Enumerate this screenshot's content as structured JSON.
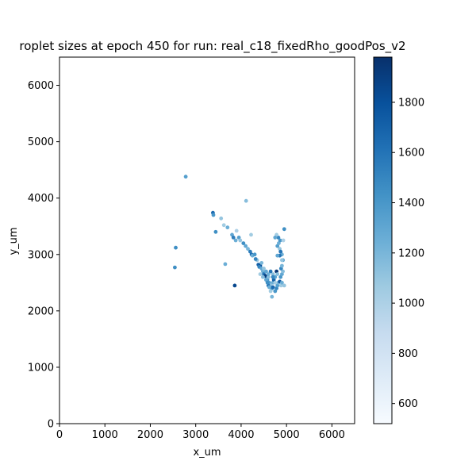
{
  "chart_data": {
    "type": "scatter",
    "title": "roplet sizes at epoch 450 for run: real_c18_fixedRho_goodPos_v2",
    "xlabel": "x_um",
    "ylabel": "y_um",
    "xlim": [
      0,
      6500
    ],
    "ylim": [
      0,
      6500
    ],
    "xticks": [
      0,
      1000,
      2000,
      3000,
      4000,
      5000,
      6000
    ],
    "yticks": [
      0,
      1000,
      2000,
      3000,
      4000,
      5000,
      6000
    ],
    "grid": false,
    "colorbar": {
      "cmap": "Blues",
      "range": [
        520,
        1980
      ],
      "ticks": [
        600,
        800,
        1000,
        1200,
        1400,
        1600,
        1800
      ],
      "colors": {
        "low": "#f7fbff",
        "mid": "#6baed6",
        "high": "#08306b"
      }
    },
    "points": [
      [
        2780,
        4380,
        1350
      ],
      [
        4110,
        3950,
        1150
      ],
      [
        3380,
        3740,
        1650
      ],
      [
        3390,
        3700,
        1400
      ],
      [
        3560,
        3640,
        1100
      ],
      [
        3700,
        3480,
        1250
      ],
      [
        3440,
        3400,
        1450
      ],
      [
        3620,
        3520,
        1050
      ],
      [
        3900,
        3420,
        1000
      ],
      [
        3800,
        3350,
        1300
      ],
      [
        3830,
        3300,
        1550
      ],
      [
        3880,
        3250,
        1250
      ],
      [
        3950,
        3300,
        1350
      ],
      [
        3980,
        3250,
        1100
      ],
      [
        4050,
        3200,
        1450
      ],
      [
        4100,
        3150,
        1300
      ],
      [
        4150,
        3100,
        1200
      ],
      [
        4200,
        3050,
        1550
      ],
      [
        4230,
        3000,
        1650
      ],
      [
        4250,
        2980,
        1250
      ],
      [
        4300,
        3000,
        1400
      ],
      [
        4220,
        3350,
        1050
      ],
      [
        4350,
        2900,
        1100
      ],
      [
        4380,
        2820,
        1700
      ],
      [
        4420,
        2800,
        1800
      ],
      [
        4400,
        2780,
        1500
      ],
      [
        4450,
        2750,
        1300
      ],
      [
        4480,
        2700,
        1250
      ],
      [
        4500,
        2650,
        1600
      ],
      [
        4550,
        2600,
        1200
      ],
      [
        4530,
        2620,
        1900
      ],
      [
        4580,
        2550,
        1400
      ],
      [
        4600,
        2600,
        1150
      ],
      [
        4620,
        2500,
        1350
      ],
      [
        4650,
        2450,
        1100
      ],
      [
        4680,
        2400,
        1450
      ],
      [
        4700,
        2500,
        1250
      ],
      [
        4720,
        2550,
        1700
      ],
      [
        4750,
        2600,
        1300
      ],
      [
        4650,
        2350,
        1050
      ],
      [
        4680,
        2250,
        1200
      ],
      [
        4600,
        2450,
        1600
      ],
      [
        4780,
        2400,
        1500
      ],
      [
        4800,
        2450,
        1350
      ],
      [
        4820,
        2500,
        1200
      ],
      [
        4850,
        2520,
        1750
      ],
      [
        4880,
        2450,
        1050
      ],
      [
        4900,
        2500,
        1250
      ],
      [
        4870,
        2600,
        1400
      ],
      [
        4900,
        2650,
        1300
      ],
      [
        4920,
        2700,
        1150
      ],
      [
        4880,
        2750,
        1500
      ],
      [
        4900,
        2800,
        1200
      ],
      [
        4920,
        2900,
        1350
      ],
      [
        4900,
        3000,
        1250
      ],
      [
        4850,
        3100,
        1100
      ],
      [
        4800,
        3150,
        1350
      ],
      [
        4830,
        3200,
        1250
      ],
      [
        4860,
        3250,
        1400
      ],
      [
        4820,
        3300,
        1500
      ],
      [
        4780,
        3350,
        1050
      ],
      [
        4750,
        3300,
        1300
      ],
      [
        4950,
        3450,
        1450
      ],
      [
        4930,
        3250,
        1000
      ],
      [
        4850,
        2980,
        1600
      ],
      [
        4780,
        2700,
        1950
      ],
      [
        4700,
        2650,
        1150
      ],
      [
        4550,
        2700,
        1300
      ],
      [
        4500,
        2750,
        1100
      ],
      [
        4700,
        2420,
        1650
      ],
      [
        4750,
        2350,
        1400
      ],
      [
        4620,
        2420,
        1250
      ],
      [
        4450,
        2850,
        1200
      ],
      [
        4320,
        2920,
        1500
      ],
      [
        4550,
        2550,
        1300
      ],
      [
        4420,
        2650,
        1050
      ],
      [
        4700,
        2600,
        1500
      ],
      [
        4800,
        2650,
        1150
      ],
      [
        4650,
        2700,
        1600
      ],
      [
        4600,
        2650,
        1250
      ],
      [
        4750,
        2500,
        1050
      ],
      [
        4950,
        2450,
        1100
      ],
      [
        4800,
        2980,
        1300
      ],
      [
        4870,
        3050,
        1600
      ],
      [
        4900,
        2900,
        1100
      ],
      [
        4580,
        2500,
        1450
      ],
      [
        4480,
        2600,
        1150
      ],
      [
        3860,
        2450,
        1850
      ],
      [
        3650,
        2830,
        1250
      ],
      [
        2560,
        3120,
        1450
      ],
      [
        2540,
        2770,
        1450
      ]
    ]
  }
}
